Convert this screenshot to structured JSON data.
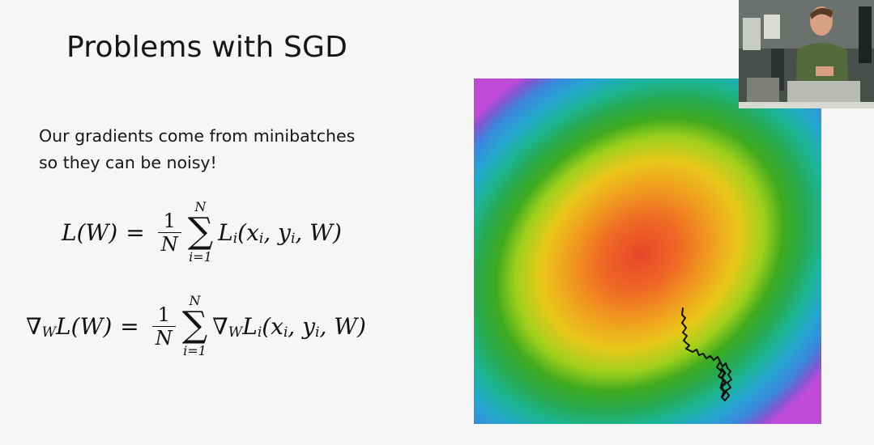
{
  "slide": {
    "title": "Problems with SGD",
    "bullet_lines": [
      "Our gradients come from minibatches",
      "so they can be noisy!"
    ]
  },
  "equations": {
    "loss": {
      "lhs": "L(W)",
      "equals": "=",
      "frac_num": "1",
      "frac_den": "N",
      "sum_upper": "N",
      "sum_lower": "i=1",
      "term_fn": "L",
      "term_sub": "i",
      "term_args": "(x",
      "args_sub1": "i",
      "args_mid": ", y",
      "args_sub2": "i",
      "args_end": ", W)"
    },
    "gradient": {
      "nabla": "∇",
      "nabla_sub": "W",
      "lhs": "L(W)",
      "equals": "=",
      "frac_num": "1",
      "frac_den": "N",
      "sum_upper": "N",
      "sum_lower": "i=1",
      "term_nabla": "∇",
      "term_nabla_sub": "W",
      "term_fn": "L",
      "term_sub": "i",
      "term_args": "(x",
      "args_sub1": "i",
      "args_mid": ", y",
      "args_sub2": "i",
      "args_end": ", W)"
    }
  },
  "figure": {
    "kind": "loss-surface-heatmap",
    "colormap": [
      "#e8452a",
      "#f07f1e",
      "#e9c21a",
      "#9ccd1b",
      "#2fa61f",
      "#1cb48d",
      "#2d9ed8",
      "#7a5bd0",
      "#c04bd8"
    ],
    "path_color": "#111111"
  },
  "webcam": {
    "kind": "presenter-video-overlay"
  }
}
